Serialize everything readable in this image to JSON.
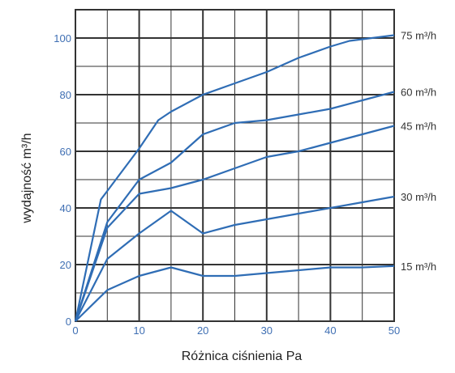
{
  "chart_data": {
    "type": "line",
    "xlabel": "Różnica ciśnienia Pa",
    "ylabel": "wydajność m³/h",
    "xlim": [
      0,
      50
    ],
    "ylim": [
      0,
      110
    ],
    "x_ticks": [
      "0",
      "10",
      "20",
      "30",
      "40",
      "50"
    ],
    "y_ticks": [
      "0",
      "20",
      "40",
      "60",
      "80",
      "100"
    ],
    "grid": true,
    "colors": {
      "line": "#2f6db5",
      "grid": "#333333",
      "tick": "#3f6fb3"
    },
    "series": [
      {
        "name": "75 m³/h",
        "x": [
          0,
          4,
          5,
          10,
          13,
          15,
          20,
          25,
          30,
          35,
          40,
          43,
          50
        ],
        "y": [
          0,
          43,
          46,
          61,
          71,
          74,
          80,
          84,
          88,
          93,
          97,
          99,
          101
        ]
      },
      {
        "name": "60 m³/h",
        "x": [
          0,
          5,
          10,
          15,
          20,
          25,
          30,
          35,
          40,
          45,
          50
        ],
        "y": [
          0,
          35,
          50,
          56,
          66,
          70,
          71,
          73,
          75,
          78,
          81
        ]
      },
      {
        "name": "45 m³/h",
        "x": [
          0,
          5,
          10,
          15,
          20,
          25,
          30,
          35,
          40,
          45,
          50
        ],
        "y": [
          0,
          33,
          45,
          47,
          50,
          54,
          58,
          60,
          63,
          66,
          69
        ]
      },
      {
        "name": "30 m³/h",
        "x": [
          0,
          5,
          10,
          15,
          20,
          25,
          30,
          35,
          40,
          45,
          50
        ],
        "y": [
          0,
          22,
          31,
          39,
          31,
          34,
          36,
          38,
          40,
          42,
          44
        ]
      },
      {
        "name": "15 m³/h",
        "x": [
          0,
          5,
          10,
          15,
          20,
          25,
          30,
          35,
          40,
          45,
          50
        ],
        "y": [
          0,
          11,
          16,
          19,
          16,
          16,
          17,
          18,
          19,
          19,
          19.5
        ]
      }
    ]
  }
}
